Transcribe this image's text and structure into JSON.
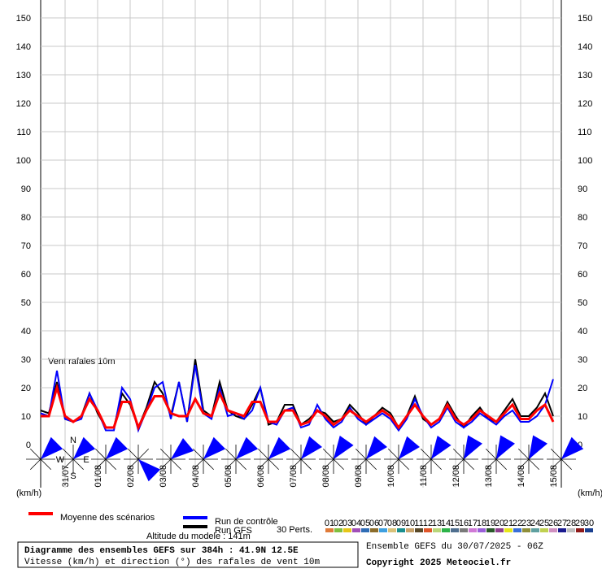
{
  "chart_data": {
    "type": "line",
    "title": "Diagramme des ensembles GEFS sur 384h : 41.9N 12.5E",
    "subtitle": "Vitesse (km/h) et direction (°) des rafales de vent 10m",
    "annotation": "Vent rafales 10m",
    "y_unit": "(km/h)",
    "altitude": "Altitude du modele : 141m",
    "run_info": "Ensemble GEFS du 30/07/2025 - 06Z",
    "copyright": "Copyright 2025 Meteociel.fr",
    "perts_label": "30 Perts.",
    "x": [
      0,
      6,
      12,
      18,
      24,
      30,
      36,
      42,
      48,
      54,
      60,
      66,
      72,
      78,
      84,
      90,
      96,
      102,
      108,
      114,
      120,
      126,
      132,
      138,
      144,
      150,
      156,
      162,
      168,
      174,
      180,
      186,
      192,
      198,
      204,
      210,
      216,
      222,
      228,
      234,
      240,
      246,
      252,
      258,
      264,
      270,
      276,
      282,
      288,
      294,
      300,
      306,
      312,
      318,
      324,
      330,
      336,
      342,
      348,
      354,
      360,
      366,
      372,
      378
    ],
    "xlim": [
      0,
      384
    ],
    "xticks": [
      {
        "value": 18,
        "label": "31/07"
      },
      {
        "value": 42,
        "label": "01/08"
      },
      {
        "value": 66,
        "label": "02/08"
      },
      {
        "value": 90,
        "label": "03/08"
      },
      {
        "value": 114,
        "label": "04/08"
      },
      {
        "value": 138,
        "label": "05/08"
      },
      {
        "value": 162,
        "label": "06/08"
      },
      {
        "value": 186,
        "label": "07/08"
      },
      {
        "value": 210,
        "label": "08/08"
      },
      {
        "value": 234,
        "label": "09/08"
      },
      {
        "value": 258,
        "label": "10/08"
      },
      {
        "value": 282,
        "label": "11/08"
      },
      {
        "value": 306,
        "label": "12/08"
      },
      {
        "value": 330,
        "label": "13/08"
      },
      {
        "value": 354,
        "label": "14/08"
      },
      {
        "value": 378,
        "label": "15/08"
      }
    ],
    "ylim": [
      0,
      150
    ],
    "yticks": [
      0,
      10,
      20,
      30,
      40,
      50,
      60,
      70,
      80,
      90,
      100,
      110,
      120,
      130,
      140,
      150
    ],
    "grid": true,
    "series": [
      {
        "name": "Moyenne des scénarios",
        "color": "#ff0000",
        "values": [
          10,
          10,
          20,
          10,
          8,
          10,
          16,
          12,
          6,
          6,
          15,
          15,
          6,
          12,
          17,
          17,
          11,
          10,
          10,
          16,
          11,
          10,
          18,
          12,
          11,
          10,
          15,
          15,
          8,
          8,
          12,
          12,
          7,
          8,
          12,
          10,
          7,
          9,
          12,
          10,
          8,
          10,
          12,
          10,
          6,
          10,
          14,
          10,
          7,
          9,
          14,
          9,
          7,
          9,
          12,
          10,
          8,
          11,
          14,
          9,
          9,
          12,
          14,
          8
        ]
      },
      {
        "name": "Run de contrôle",
        "color": "#0000ff",
        "values": [
          11,
          10,
          26,
          9,
          8,
          9,
          18,
          12,
          5,
          5,
          20,
          16,
          5,
          12,
          20,
          22,
          9,
          22,
          8,
          28,
          11,
          9,
          20,
          10,
          11,
          9,
          12,
          20,
          8,
          7,
          12,
          13,
          6,
          7,
          14,
          9,
          6,
          8,
          13,
          9,
          7,
          9,
          11,
          9,
          5,
          9,
          16,
          10,
          6,
          8,
          13,
          8,
          6,
          8,
          11,
          9,
          7,
          10,
          12,
          8,
          8,
          10,
          14,
          23
        ]
      },
      {
        "name": "Run GFS",
        "color": "#000000",
        "values": [
          12,
          11,
          22,
          9,
          8,
          10,
          18,
          11,
          6,
          6,
          18,
          14,
          6,
          13,
          22,
          18,
          10,
          22,
          8,
          30,
          12,
          10,
          22,
          12,
          10,
          9,
          14,
          20,
          7,
          8,
          14,
          14,
          7,
          9,
          12,
          11,
          8,
          9,
          14,
          11,
          7,
          10,
          13,
          11,
          6,
          10,
          17,
          9,
          7,
          9,
          15,
          10,
          6,
          10,
          13,
          9,
          8,
          12,
          16,
          10,
          10,
          13,
          18,
          10
        ]
      }
    ],
    "perturbations": [
      {
        "name": "01",
        "color": "#e07b39"
      },
      {
        "name": "02",
        "color": "#7fbf3f"
      },
      {
        "name": "03",
        "color": "#e6c619"
      },
      {
        "name": "04",
        "color": "#a14fb8"
      },
      {
        "name": "05",
        "color": "#2f6db5"
      },
      {
        "name": "06",
        "color": "#8c6d2c"
      },
      {
        "name": "07",
        "color": "#3fa0e0"
      },
      {
        "name": "08",
        "color": "#d9c27a"
      },
      {
        "name": "09",
        "color": "#1a8f8f"
      },
      {
        "name": "10",
        "color": "#c9a36b"
      },
      {
        "name": "11",
        "color": "#5a4a2a"
      },
      {
        "name": "12",
        "color": "#e0562a"
      },
      {
        "name": "13",
        "color": "#b8d67a"
      },
      {
        "name": "14",
        "color": "#2db34a"
      },
      {
        "name": "15",
        "color": "#4f6f8f"
      },
      {
        "name": "16",
        "color": "#7a7a7a"
      },
      {
        "name": "17",
        "color": "#d07ad6"
      },
      {
        "name": "18",
        "color": "#9a5fd9"
      },
      {
        "name": "19",
        "color": "#2a5a2a"
      },
      {
        "name": "20",
        "color": "#8f3f8f"
      },
      {
        "name": "21",
        "color": "#e6e619"
      },
      {
        "name": "22",
        "color": "#3a6fd9"
      },
      {
        "name": "23",
        "color": "#8f8f3a"
      },
      {
        "name": "24",
        "color": "#5fa0a0"
      },
      {
        "name": "25",
        "color": "#c0d050"
      },
      {
        "name": "26",
        "color": "#d090c0"
      },
      {
        "name": "27",
        "color": "#1a1a8f"
      },
      {
        "name": "28",
        "color": "#bfbfbf"
      },
      {
        "name": "29",
        "color": "#8f1a1a"
      },
      {
        "name": "30",
        "color": "#1a3f8f"
      }
    ],
    "wind_direction": {
      "x": [
        0,
        24,
        48,
        72,
        96,
        120,
        144,
        168,
        192,
        216,
        240,
        264,
        288,
        312,
        336,
        360,
        384
      ],
      "values": [
        225,
        225,
        225,
        315,
        230,
        225,
        225,
        225,
        220,
        215,
        220,
        220,
        215,
        210,
        210,
        210,
        225
      ],
      "color": "#0000ff",
      "compass": [
        "N",
        "W",
        "E",
        "S"
      ]
    }
  }
}
